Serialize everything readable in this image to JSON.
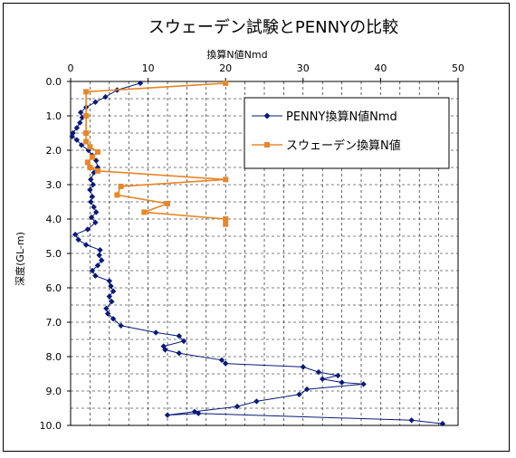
{
  "chart_data": {
    "type": "scatter",
    "title": "スウェーデン試験とPENNYの比較",
    "xlabel": "換算N値Nmd",
    "ylabel": "深度(GL-m)",
    "xlim": [
      0,
      50
    ],
    "ylim": [
      0.0,
      10.0
    ],
    "x_ticks": [
      "0",
      "10",
      "20",
      "30",
      "40",
      "50"
    ],
    "y_ticks": [
      "0.0",
      "1.0",
      "2.0",
      "3.0",
      "4.0",
      "5.0",
      "6.0",
      "7.0",
      "8.0",
      "9.0",
      "10.0"
    ],
    "x_axis_position": "top",
    "y_reversed": true,
    "grid": true,
    "legend_position": "top-right",
    "series": [
      {
        "name": "PENNY換算N値Nmd",
        "color": "#0a1a7a",
        "marker": "diamond",
        "points": [
          [
            9.0,
            0.05
          ],
          [
            6.0,
            0.25
          ],
          [
            4.5,
            0.45
          ],
          [
            3.2,
            0.6
          ],
          [
            2.0,
            0.75
          ],
          [
            1.3,
            0.9
          ],
          [
            1.5,
            1.05
          ],
          [
            1.2,
            1.2
          ],
          [
            0.8,
            1.35
          ],
          [
            0.3,
            1.5
          ],
          [
            0.2,
            1.6
          ],
          [
            0.8,
            1.7
          ],
          [
            1.4,
            1.85
          ],
          [
            2.3,
            2.0
          ],
          [
            2.8,
            2.15
          ],
          [
            3.3,
            2.3
          ],
          [
            3.5,
            2.5
          ],
          [
            3.0,
            2.65
          ],
          [
            2.6,
            2.85
          ],
          [
            2.9,
            3.0
          ],
          [
            2.5,
            3.15
          ],
          [
            2.8,
            3.35
          ],
          [
            2.6,
            3.5
          ],
          [
            3.0,
            3.65
          ],
          [
            3.3,
            3.8
          ],
          [
            2.7,
            3.95
          ],
          [
            3.2,
            4.1
          ],
          [
            2.2,
            4.3
          ],
          [
            0.6,
            4.45
          ],
          [
            1.0,
            4.6
          ],
          [
            2.0,
            4.75
          ],
          [
            3.8,
            4.9
          ],
          [
            3.7,
            5.05
          ],
          [
            4.0,
            5.2
          ],
          [
            3.5,
            5.35
          ],
          [
            2.8,
            5.5
          ],
          [
            3.2,
            5.65
          ],
          [
            5.0,
            5.8
          ],
          [
            5.2,
            5.95
          ],
          [
            5.5,
            6.1
          ],
          [
            5.0,
            6.25
          ],
          [
            5.3,
            6.4
          ],
          [
            4.6,
            6.6
          ],
          [
            4.8,
            6.75
          ],
          [
            5.5,
            6.9
          ],
          [
            6.5,
            7.1
          ],
          [
            11.0,
            7.3
          ],
          [
            14.0,
            7.4
          ],
          [
            14.6,
            7.55
          ],
          [
            12.0,
            7.7
          ],
          [
            12.2,
            7.8
          ],
          [
            14.0,
            7.9
          ],
          [
            19.5,
            8.1
          ],
          [
            20.0,
            8.2
          ],
          [
            30.0,
            8.3
          ],
          [
            32.0,
            8.45
          ],
          [
            34.5,
            8.55
          ],
          [
            32.5,
            8.65
          ],
          [
            35.0,
            8.75
          ],
          [
            37.8,
            8.8
          ],
          [
            30.5,
            8.95
          ],
          [
            29.5,
            9.1
          ],
          [
            24.0,
            9.3
          ],
          [
            21.5,
            9.45
          ],
          [
            16.0,
            9.6
          ],
          [
            12.5,
            9.7
          ],
          [
            16.5,
            9.65
          ],
          [
            44.0,
            9.85
          ],
          [
            48.0,
            9.95
          ]
        ]
      },
      {
        "name": "スウェーデン換算N値",
        "color": "#e88628",
        "marker": "square",
        "points": [
          [
            20.0,
            0.05
          ],
          [
            2.0,
            0.3
          ],
          [
            2.0,
            1.0
          ],
          [
            2.0,
            1.5
          ],
          [
            2.0,
            1.75
          ],
          [
            2.5,
            1.9
          ],
          [
            3.5,
            2.05
          ],
          [
            2.8,
            2.2
          ],
          [
            2.2,
            2.35
          ],
          [
            2.5,
            2.5
          ],
          [
            3.5,
            2.6
          ],
          [
            20.0,
            2.85
          ],
          [
            6.5,
            3.05
          ],
          [
            6.0,
            3.3
          ],
          [
            12.5,
            3.55
          ],
          [
            9.5,
            3.8
          ],
          [
            20.0,
            4.0
          ],
          [
            20.0,
            4.15
          ]
        ]
      }
    ]
  }
}
